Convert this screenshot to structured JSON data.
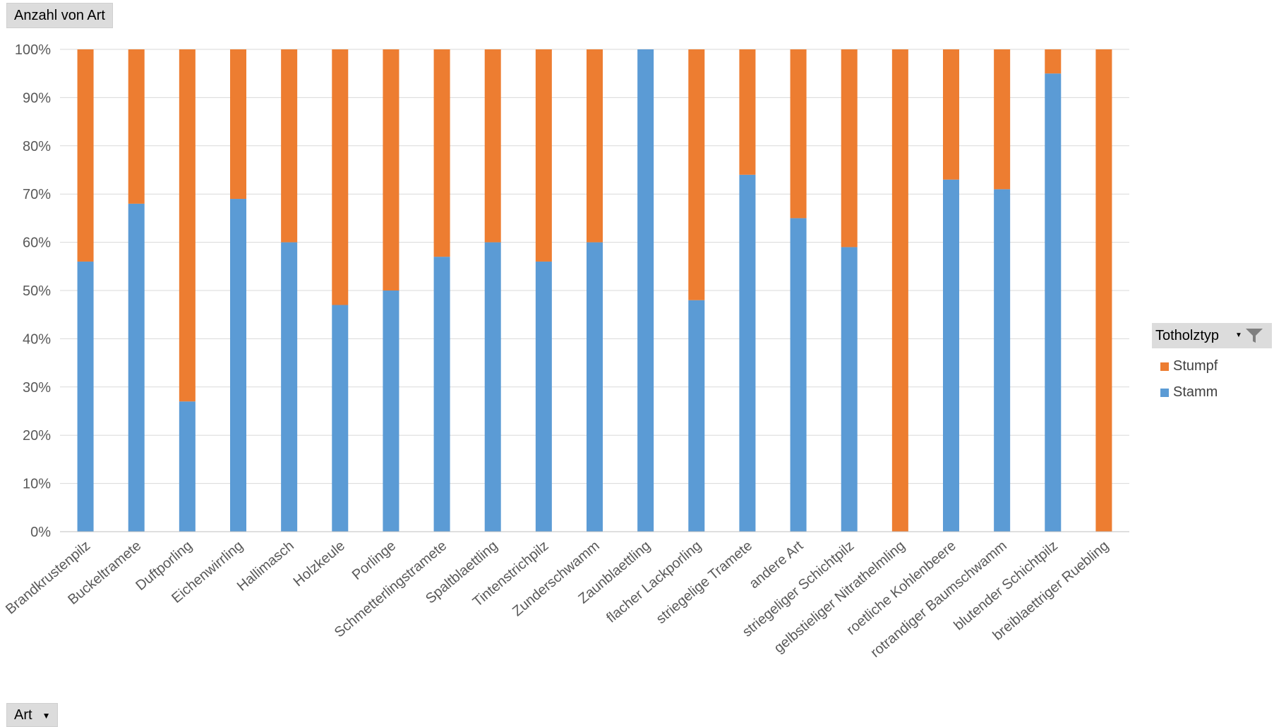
{
  "value_field_button": {
    "label": "Anzahl von Art"
  },
  "axis_field_button": {
    "label": "Art",
    "dropdown_icon": "chevron-down-icon"
  },
  "legend": {
    "title": "Totholztyp",
    "filter_icon": "filter-funnel-icon",
    "dropdown_icon": "chevron-down-icon",
    "items": [
      {
        "label": "Stumpf",
        "color": "#ED7D31"
      },
      {
        "label": "Stamm",
        "color": "#5B9BD5"
      }
    ]
  },
  "chart_data": {
    "type": "bar",
    "stacked": "percent",
    "title": "",
    "xlabel": "",
    "ylabel": "",
    "ylim": [
      0,
      100
    ],
    "yticks": [
      "0%",
      "10%",
      "20%",
      "30%",
      "40%",
      "50%",
      "60%",
      "70%",
      "80%",
      "90%",
      "100%"
    ],
    "grid": true,
    "legend_position": "right",
    "categories": [
      "Brandkrustenpilz",
      "Buckeltramete",
      "Duftporling",
      "Eichenwirrling",
      "Hallimasch",
      "Holzkeule",
      "Porlinge",
      "Schmetterlingstramete",
      "Spaltblaettling",
      "Tintenstrichpilz",
      "Zunderschwamm",
      "Zaunblaettling",
      "flacher Lackporling",
      "striegelige Tramete",
      "andere Art",
      "striegeliger Schichtpilz",
      "gelbstieliger Nitrathelmling",
      "roetliche Kohlenbeere",
      "rotrandiger Baumschwamm",
      "blutender Schichtpilz",
      "breiblaettriger Ruebling"
    ],
    "series": [
      {
        "name": "Stamm",
        "color": "#5B9BD5",
        "values": [
          56,
          68,
          27,
          69,
          60,
          47,
          50,
          57,
          60,
          56,
          60,
          100,
          48,
          74,
          65,
          59,
          0,
          73,
          71,
          95,
          0
        ]
      },
      {
        "name": "Stumpf",
        "color": "#ED7D31",
        "values": [
          44,
          32,
          73,
          31,
          40,
          53,
          50,
          43,
          40,
          44,
          40,
          0,
          52,
          26,
          35,
          41,
          100,
          27,
          29,
          5,
          100
        ]
      }
    ]
  }
}
